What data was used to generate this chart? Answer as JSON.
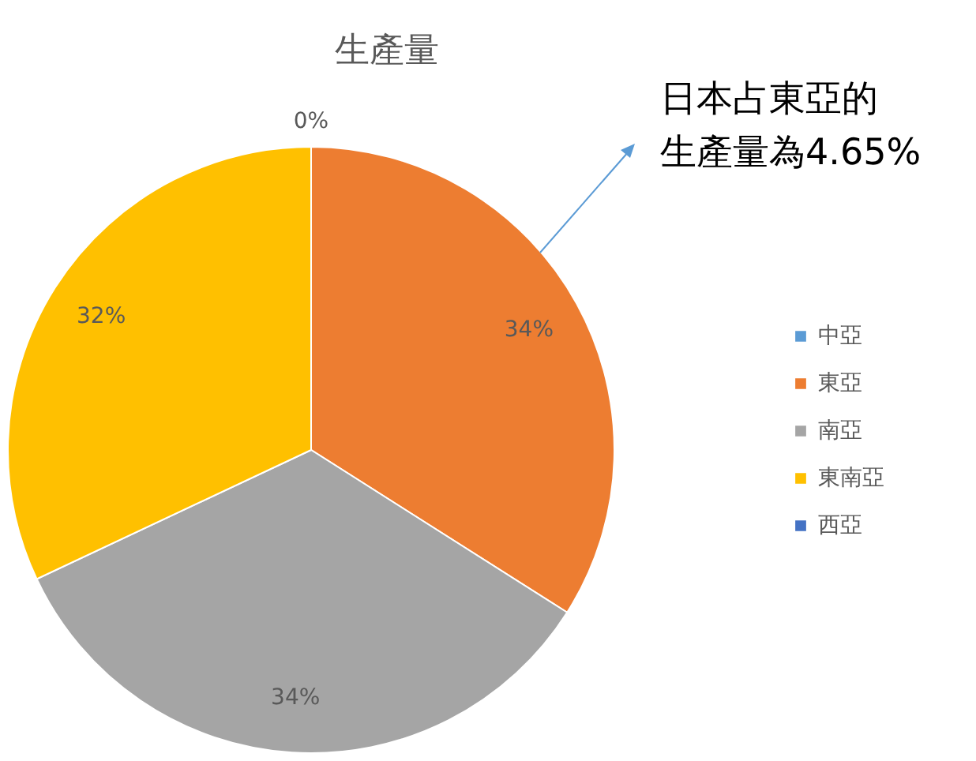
{
  "chart_data": {
    "type": "pie",
    "title": "生產量",
    "categories": [
      "中亞",
      "東亞",
      "南亞",
      "東南亞",
      "西亞"
    ],
    "values": [
      0,
      34,
      34,
      32,
      0
    ],
    "colors": [
      "#5b9bd5",
      "#ed7d31",
      "#a5a5a5",
      "#ffc000",
      "#4472c4"
    ],
    "value_labels": [
      "0%",
      "34%",
      "34%",
      "32%",
      null
    ],
    "legend": "right",
    "annotations": [
      "日本占東亞的生產量為4.65%"
    ]
  }
}
